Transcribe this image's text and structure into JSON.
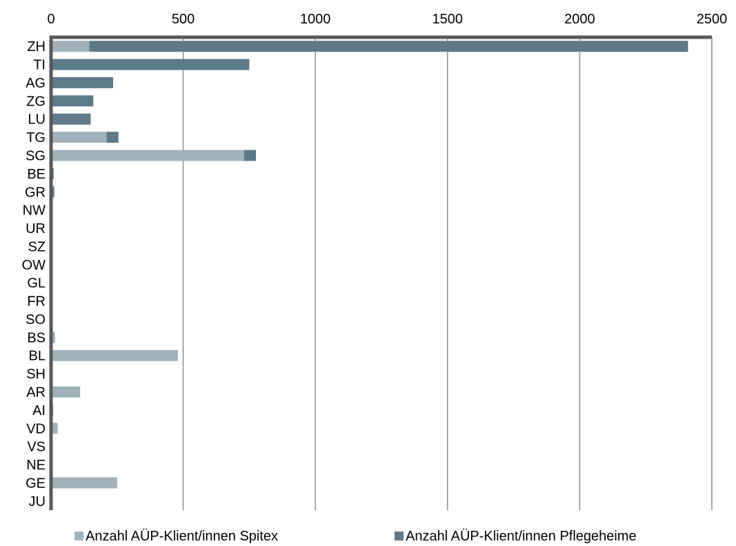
{
  "chart_data": {
    "type": "bar",
    "orientation": "horizontal",
    "stacked": true,
    "x_axis_position": "top",
    "xlim": [
      0,
      2500
    ],
    "xticks": [
      "0",
      "500",
      "1000",
      "1500",
      "2000",
      "2500"
    ],
    "grid": true,
    "legend_position": "bottom",
    "categories": [
      "ZH",
      "TI",
      "AG",
      "ZG",
      "LU",
      "TG",
      "SG",
      "BE",
      "GR",
      "NW",
      "UR",
      "SZ",
      "OW",
      "GL",
      "FR",
      "SO",
      "BS",
      "BL",
      "SH",
      "AR",
      "AI",
      "VD",
      "VS",
      "NE",
      "GE",
      "JU"
    ],
    "series": [
      {
        "name": "Anzahl AÜP-Klient/innen Spitex",
        "color": "#9fb1bd",
        "values": [
          145,
          0,
          0,
          0,
          0,
          210,
          730,
          0,
          0,
          0,
          0,
          0,
          0,
          0,
          0,
          0,
          15,
          480,
          0,
          110,
          5,
          25,
          0,
          0,
          250,
          0
        ]
      },
      {
        "name": "Anzahl AÜP-Klient/innen Pflegeheime",
        "color": "#5d7a8b",
        "values": [
          2265,
          750,
          235,
          160,
          150,
          45,
          45,
          10,
          12,
          0,
          0,
          0,
          0,
          0,
          0,
          0,
          0,
          0,
          0,
          0,
          3,
          0,
          0,
          0,
          0,
          0
        ]
      }
    ]
  }
}
